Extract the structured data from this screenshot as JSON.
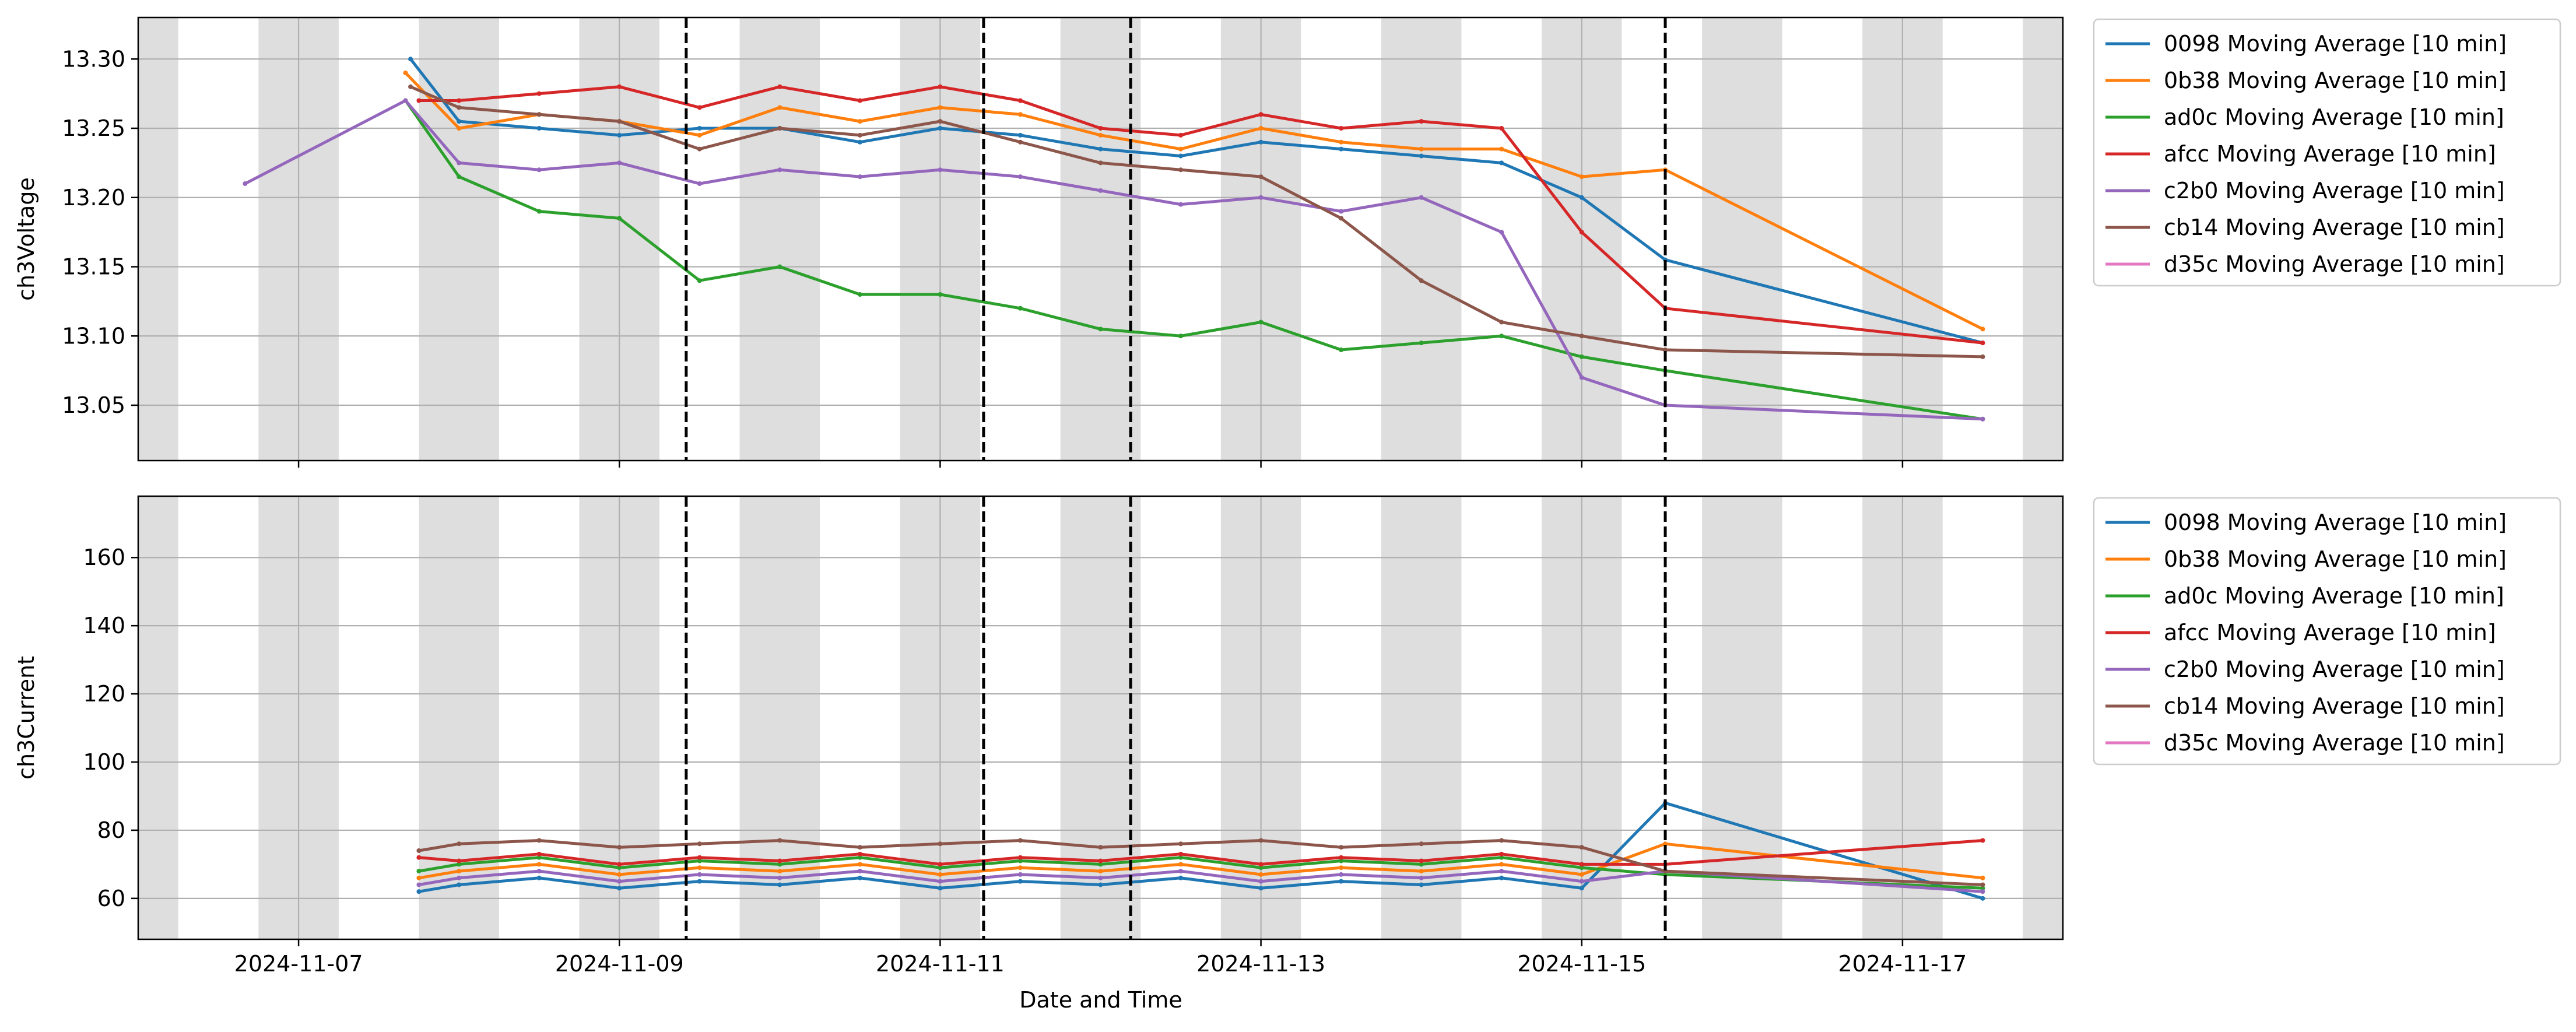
{
  "figure": {
    "xlabel": "Date and Time"
  },
  "chart_data": [
    {
      "type": "line",
      "ylabel": "ch3Voltage",
      "xlabel": "",
      "x_type": "date",
      "xlim": [
        "2024-11-06 00:00",
        "2024-11-18 00:00"
      ],
      "ylim": [
        13.01,
        13.33
      ],
      "x_ticks": [
        "2024-11-07",
        "2024-11-09",
        "2024-11-11",
        "2024-11-13",
        "2024-11-15",
        "2024-11-17"
      ],
      "y_ticks": [
        13.05,
        13.1,
        13.15,
        13.2,
        13.25,
        13.3
      ],
      "y_tick_labels": [
        "13.05",
        "13.10",
        "13.15",
        "13.20",
        "13.25",
        "13.30"
      ],
      "grid": true,
      "legend_position": "outside-right",
      "shaded_spans": [
        [
          "2024-11-06 00:00",
          "2024-11-06 06:00"
        ],
        [
          "2024-11-06 18:00",
          "2024-11-07 06:00"
        ],
        [
          "2024-11-07 18:00",
          "2024-11-08 06:00"
        ],
        [
          "2024-11-08 18:00",
          "2024-11-09 06:00"
        ],
        [
          "2024-11-09 18:00",
          "2024-11-10 06:00"
        ],
        [
          "2024-11-10 18:00",
          "2024-11-11 06:00"
        ],
        [
          "2024-11-11 18:00",
          "2024-11-12 06:00"
        ],
        [
          "2024-11-12 18:00",
          "2024-11-13 06:00"
        ],
        [
          "2024-11-13 18:00",
          "2024-11-14 06:00"
        ],
        [
          "2024-11-14 18:00",
          "2024-11-15 06:00"
        ],
        [
          "2024-11-15 18:00",
          "2024-11-16 06:00"
        ],
        [
          "2024-11-16 18:00",
          "2024-11-17 06:00"
        ],
        [
          "2024-11-17 18:00",
          "2024-11-18 00:00"
        ]
      ],
      "vlines": [
        "2024-11-09 10:00",
        "2024-11-11 06:30",
        "2024-11-12 04:30",
        "2024-11-15 12:30"
      ],
      "series": [
        {
          "name": "0098 Moving Average [10 min]",
          "color": "#1f77b4",
          "x": [
            "2024-11-07 16:45",
            "2024-11-08 00:00",
            "2024-11-08 12:00",
            "2024-11-09 00:00",
            "2024-11-09 12:00",
            "2024-11-10 00:00",
            "2024-11-10 12:00",
            "2024-11-11 00:00",
            "2024-11-11 12:00",
            "2024-11-12 00:00",
            "2024-11-12 12:00",
            "2024-11-13 00:00",
            "2024-11-13 12:00",
            "2024-11-14 00:00",
            "2024-11-14 12:00",
            "2024-11-15 00:00",
            "2024-11-15 12:30",
            "2024-11-17 12:00"
          ],
          "y": [
            13.3,
            13.255,
            13.25,
            13.245,
            13.25,
            13.25,
            13.24,
            13.25,
            13.245,
            13.235,
            13.23,
            13.24,
            13.235,
            13.23,
            13.225,
            13.2,
            13.155,
            13.095
          ]
        },
        {
          "name": "0b38 Moving Average [10 min]",
          "color": "#ff7f0e",
          "x": [
            "2024-11-07 16:00",
            "2024-11-08 00:00",
            "2024-11-08 12:00",
            "2024-11-09 00:00",
            "2024-11-09 12:00",
            "2024-11-10 00:00",
            "2024-11-10 12:00",
            "2024-11-11 00:00",
            "2024-11-11 12:00",
            "2024-11-12 00:00",
            "2024-11-12 12:00",
            "2024-11-13 00:00",
            "2024-11-13 12:00",
            "2024-11-14 00:00",
            "2024-11-14 12:00",
            "2024-11-15 00:00",
            "2024-11-15 12:30",
            "2024-11-17 12:00"
          ],
          "y": [
            13.29,
            13.25,
            13.26,
            13.255,
            13.245,
            13.265,
            13.255,
            13.265,
            13.26,
            13.245,
            13.235,
            13.25,
            13.24,
            13.235,
            13.235,
            13.215,
            13.22,
            13.105
          ]
        },
        {
          "name": "ad0c Moving Average [10 min]",
          "color": "#2ca02c",
          "x": [
            "2024-11-07 16:00",
            "2024-11-08 00:00",
            "2024-11-08 12:00",
            "2024-11-09 00:00",
            "2024-11-09 12:00",
            "2024-11-10 00:00",
            "2024-11-10 12:00",
            "2024-11-11 00:00",
            "2024-11-11 12:00",
            "2024-11-12 00:00",
            "2024-11-12 12:00",
            "2024-11-13 00:00",
            "2024-11-13 12:00",
            "2024-11-14 00:00",
            "2024-11-14 12:00",
            "2024-11-15 00:00",
            "2024-11-15 12:30",
            "2024-11-17 12:00"
          ],
          "y": [
            13.27,
            13.215,
            13.19,
            13.185,
            13.14,
            13.15,
            13.13,
            13.13,
            13.12,
            13.105,
            13.1,
            13.11,
            13.09,
            13.095,
            13.1,
            13.085,
            13.075,
            13.04
          ]
        },
        {
          "name": "afcc Moving Average [10 min]",
          "color": "#d62728",
          "x": [
            "2024-11-07 18:00",
            "2024-11-08 00:00",
            "2024-11-08 12:00",
            "2024-11-09 00:00",
            "2024-11-09 12:00",
            "2024-11-10 00:00",
            "2024-11-10 12:00",
            "2024-11-11 00:00",
            "2024-11-11 12:00",
            "2024-11-12 00:00",
            "2024-11-12 12:00",
            "2024-11-13 00:00",
            "2024-11-13 12:00",
            "2024-11-14 00:00",
            "2024-11-14 12:00",
            "2024-11-15 00:00",
            "2024-11-15 12:30",
            "2024-11-17 12:00"
          ],
          "y": [
            13.27,
            13.27,
            13.275,
            13.28,
            13.265,
            13.28,
            13.27,
            13.28,
            13.27,
            13.25,
            13.245,
            13.26,
            13.25,
            13.255,
            13.25,
            13.175,
            13.12,
            13.095
          ]
        },
        {
          "name": "c2b0 Moving Average [10 min]",
          "color": "#9467bd",
          "x": [
            "2024-11-06 16:00",
            "2024-11-07 16:00",
            "2024-11-08 00:00",
            "2024-11-08 12:00",
            "2024-11-09 00:00",
            "2024-11-09 12:00",
            "2024-11-10 00:00",
            "2024-11-10 12:00",
            "2024-11-11 00:00",
            "2024-11-11 12:00",
            "2024-11-12 00:00",
            "2024-11-12 12:00",
            "2024-11-13 00:00",
            "2024-11-13 12:00",
            "2024-11-14 00:00",
            "2024-11-14 12:00",
            "2024-11-15 00:00",
            "2024-11-15 12:30",
            "2024-11-17 12:00"
          ],
          "y": [
            13.21,
            13.27,
            13.225,
            13.22,
            13.225,
            13.21,
            13.22,
            13.215,
            13.22,
            13.215,
            13.205,
            13.195,
            13.2,
            13.19,
            13.2,
            13.175,
            13.07,
            13.05,
            13.04
          ]
        },
        {
          "name": "cb14 Moving Average [10 min]",
          "color": "#8c564b",
          "x": [
            "2024-11-07 16:45",
            "2024-11-08 00:00",
            "2024-11-08 12:00",
            "2024-11-09 00:00",
            "2024-11-09 12:00",
            "2024-11-10 00:00",
            "2024-11-10 12:00",
            "2024-11-11 00:00",
            "2024-11-11 12:00",
            "2024-11-12 00:00",
            "2024-11-12 12:00",
            "2024-11-13 00:00",
            "2024-11-13 12:00",
            "2024-11-14 00:00",
            "2024-11-14 12:00",
            "2024-11-15 00:00",
            "2024-11-15 12:30",
            "2024-11-17 12:00"
          ],
          "y": [
            13.28,
            13.265,
            13.26,
            13.255,
            13.235,
            13.25,
            13.245,
            13.255,
            13.24,
            13.225,
            13.22,
            13.215,
            13.185,
            13.14,
            13.11,
            13.1,
            13.09,
            13.085
          ]
        },
        {
          "name": "d35c Moving Average [10 min]",
          "color": "#e377c2",
          "x": [],
          "y": []
        }
      ]
    },
    {
      "type": "line",
      "ylabel": "ch3Current",
      "xlabel": "Date and Time",
      "x_type": "date",
      "xlim": [
        "2024-11-06 00:00",
        "2024-11-18 00:00"
      ],
      "ylim": [
        48,
        178
      ],
      "x_ticks": [
        "2024-11-07",
        "2024-11-09",
        "2024-11-11",
        "2024-11-13",
        "2024-11-15",
        "2024-11-17"
      ],
      "y_ticks": [
        60,
        80,
        100,
        120,
        140,
        160
      ],
      "y_tick_labels": [
        "60",
        "80",
        "100",
        "120",
        "140",
        "160"
      ],
      "grid": true,
      "legend_position": "outside-right",
      "shaded_spans": [
        [
          "2024-11-06 00:00",
          "2024-11-06 06:00"
        ],
        [
          "2024-11-06 18:00",
          "2024-11-07 06:00"
        ],
        [
          "2024-11-07 18:00",
          "2024-11-08 06:00"
        ],
        [
          "2024-11-08 18:00",
          "2024-11-09 06:00"
        ],
        [
          "2024-11-09 18:00",
          "2024-11-10 06:00"
        ],
        [
          "2024-11-10 18:00",
          "2024-11-11 06:00"
        ],
        [
          "2024-11-11 18:00",
          "2024-11-12 06:00"
        ],
        [
          "2024-11-12 18:00",
          "2024-11-13 06:00"
        ],
        [
          "2024-11-13 18:00",
          "2024-11-14 06:00"
        ],
        [
          "2024-11-14 18:00",
          "2024-11-15 06:00"
        ],
        [
          "2024-11-15 18:00",
          "2024-11-16 06:00"
        ],
        [
          "2024-11-16 18:00",
          "2024-11-17 06:00"
        ],
        [
          "2024-11-17 18:00",
          "2024-11-18 00:00"
        ]
      ],
      "vlines": [
        "2024-11-09 10:00",
        "2024-11-11 06:30",
        "2024-11-12 04:30",
        "2024-11-15 12:30"
      ],
      "series": [
        {
          "name": "0098 Moving Average [10 min]",
          "color": "#1f77b4",
          "x": [
            "2024-11-07 18:00",
            "2024-11-08 00:00",
            "2024-11-08 12:00",
            "2024-11-09 00:00",
            "2024-11-09 12:00",
            "2024-11-10 00:00",
            "2024-11-10 12:00",
            "2024-11-11 00:00",
            "2024-11-11 12:00",
            "2024-11-12 00:00",
            "2024-11-12 12:00",
            "2024-11-13 00:00",
            "2024-11-13 12:00",
            "2024-11-14 00:00",
            "2024-11-14 12:00",
            "2024-11-15 00:00",
            "2024-11-15 12:30",
            "2024-11-17 12:00"
          ],
          "y": [
            62,
            64,
            66,
            63,
            65,
            64,
            66,
            63,
            65,
            64,
            66,
            63,
            65,
            64,
            66,
            63,
            88,
            60
          ]
        },
        {
          "name": "0b38 Moving Average [10 min]",
          "color": "#ff7f0e",
          "x": [
            "2024-11-07 18:00",
            "2024-11-08 00:00",
            "2024-11-08 12:00",
            "2024-11-09 00:00",
            "2024-11-09 12:00",
            "2024-11-10 00:00",
            "2024-11-10 12:00",
            "2024-11-11 00:00",
            "2024-11-11 12:00",
            "2024-11-12 00:00",
            "2024-11-12 12:00",
            "2024-11-13 00:00",
            "2024-11-13 12:00",
            "2024-11-14 00:00",
            "2024-11-14 12:00",
            "2024-11-15 00:00",
            "2024-11-15 12:30",
            "2024-11-17 12:00"
          ],
          "y": [
            66,
            68,
            70,
            67,
            69,
            68,
            70,
            67,
            69,
            68,
            70,
            67,
            69,
            68,
            70,
            67,
            76,
            66
          ]
        },
        {
          "name": "ad0c Moving Average [10 min]",
          "color": "#2ca02c",
          "x": [
            "2024-11-07 18:00",
            "2024-11-08 00:00",
            "2024-11-08 12:00",
            "2024-11-09 00:00",
            "2024-11-09 12:00",
            "2024-11-10 00:00",
            "2024-11-10 12:00",
            "2024-11-11 00:00",
            "2024-11-11 12:00",
            "2024-11-12 00:00",
            "2024-11-12 12:00",
            "2024-11-13 00:00",
            "2024-11-13 12:00",
            "2024-11-14 00:00",
            "2024-11-14 12:00",
            "2024-11-15 00:00",
            "2024-11-15 12:30",
            "2024-11-17 12:00"
          ],
          "y": [
            68,
            70,
            72,
            69,
            71,
            70,
            72,
            69,
            71,
            70,
            72,
            69,
            71,
            70,
            72,
            69,
            67,
            63
          ]
        },
        {
          "name": "afcc Moving Average [10 min]",
          "color": "#d62728",
          "x": [
            "2024-11-07 18:00",
            "2024-11-08 00:00",
            "2024-11-08 12:00",
            "2024-11-09 00:00",
            "2024-11-09 12:00",
            "2024-11-10 00:00",
            "2024-11-10 12:00",
            "2024-11-11 00:00",
            "2024-11-11 12:00",
            "2024-11-12 00:00",
            "2024-11-12 12:00",
            "2024-11-13 00:00",
            "2024-11-13 12:00",
            "2024-11-14 00:00",
            "2024-11-14 12:00",
            "2024-11-15 00:00",
            "2024-11-15 12:30",
            "2024-11-17 12:00"
          ],
          "y": [
            72,
            71,
            73,
            70,
            72,
            71,
            73,
            70,
            72,
            71,
            73,
            70,
            72,
            71,
            73,
            70,
            70,
            77
          ]
        },
        {
          "name": "c2b0 Moving Average [10 min]",
          "color": "#9467bd",
          "x": [
            "2024-11-07 18:00",
            "2024-11-08 00:00",
            "2024-11-08 12:00",
            "2024-11-09 00:00",
            "2024-11-09 12:00",
            "2024-11-10 00:00",
            "2024-11-10 12:00",
            "2024-11-11 00:00",
            "2024-11-11 12:00",
            "2024-11-12 00:00",
            "2024-11-12 12:00",
            "2024-11-13 00:00",
            "2024-11-13 12:00",
            "2024-11-14 00:00",
            "2024-11-14 12:00",
            "2024-11-15 00:00",
            "2024-11-15 12:30",
            "2024-11-17 12:00"
          ],
          "y": [
            64,
            66,
            68,
            65,
            67,
            66,
            68,
            65,
            67,
            66,
            68,
            65,
            67,
            66,
            68,
            65,
            68,
            62
          ]
        },
        {
          "name": "cb14 Moving Average [10 min]",
          "color": "#8c564b",
          "x": [
            "2024-11-07 18:00",
            "2024-11-08 00:00",
            "2024-11-08 12:00",
            "2024-11-09 00:00",
            "2024-11-09 12:00",
            "2024-11-10 00:00",
            "2024-11-10 12:00",
            "2024-11-11 00:00",
            "2024-11-11 12:00",
            "2024-11-12 00:00",
            "2024-11-12 12:00",
            "2024-11-13 00:00",
            "2024-11-13 12:00",
            "2024-11-14 00:00",
            "2024-11-14 12:00",
            "2024-11-15 00:00",
            "2024-11-15 12:30",
            "2024-11-17 12:00"
          ],
          "y": [
            74,
            76,
            77,
            75,
            76,
            77,
            75,
            76,
            77,
            75,
            76,
            77,
            75,
            76,
            77,
            75,
            68,
            64
          ]
        },
        {
          "name": "d35c Moving Average [10 min]",
          "color": "#e377c2",
          "x": [],
          "y": []
        }
      ]
    }
  ]
}
